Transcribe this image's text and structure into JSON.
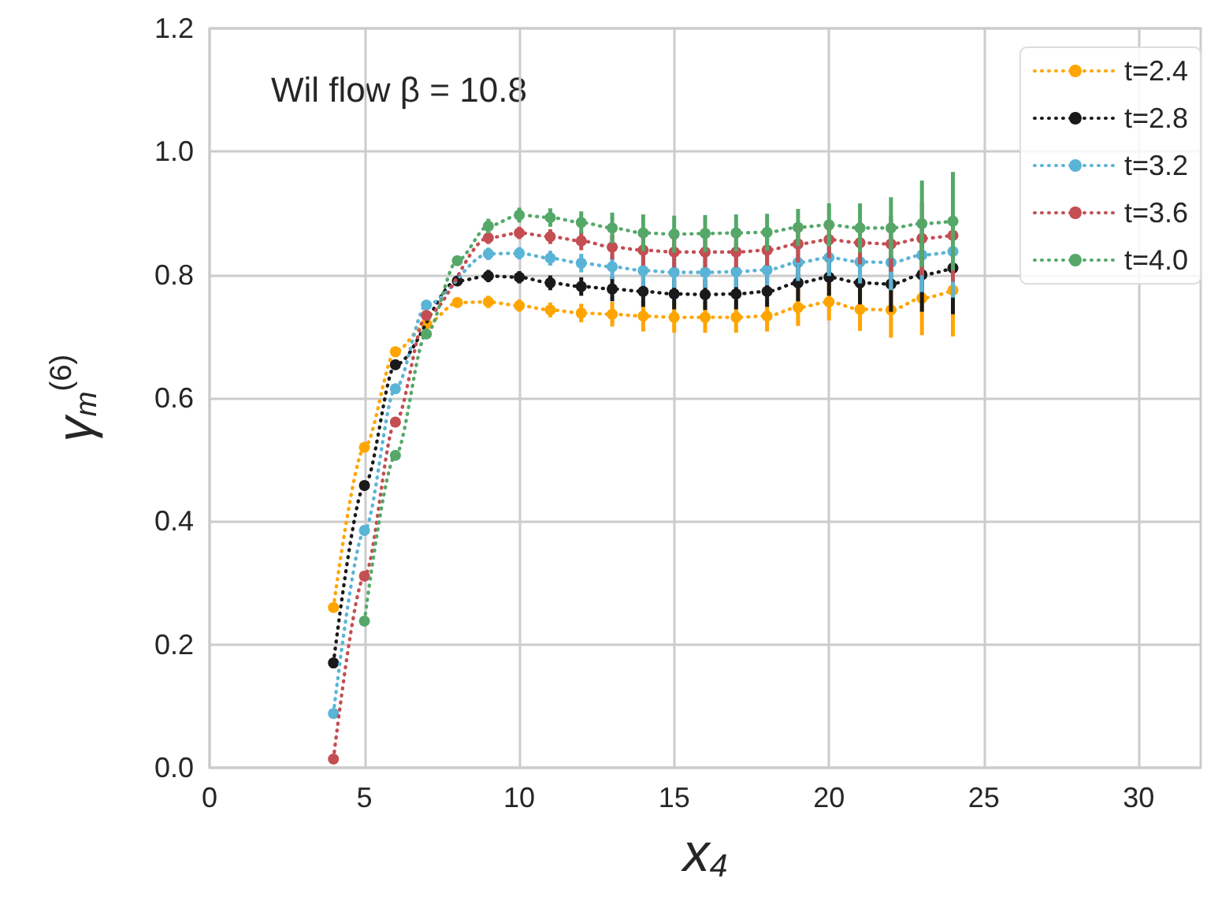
{
  "chart_data": {
    "type": "line",
    "annotations": [
      "Wil flow β = 10.8"
    ],
    "xlabel": "x$_{4}$",
    "ylabel": "γ$_{m}$$^{(6)}$",
    "xlim": [
      0,
      32
    ],
    "xticks": [
      0,
      5,
      10,
      15,
      20,
      25,
      30
    ],
    "ylim": [
      0,
      1.2
    ],
    "yticks": [
      {
        "value": 0,
        "label": "0.0"
      },
      0.2,
      0.4,
      0.6,
      0.8,
      {
        "value": 1,
        "label": "1.0"
      },
      1.2
    ],
    "grid": true,
    "legend": "top right",
    "marker": "circle",
    "line_style": "dotted",
    "series": [
      {
        "name": "t=2.4",
        "color": "#ffa500",
        "x": [
          4,
          5,
          6,
          7,
          8,
          9,
          10,
          11,
          12,
          13,
          14,
          15,
          16,
          17,
          18,
          19,
          20,
          21,
          22,
          23,
          24
        ],
        "values": [
          0.26,
          0.52,
          0.675,
          0.72,
          0.755,
          0.756,
          0.75,
          0.743,
          0.738,
          0.736,
          0.733,
          0.731,
          0.731,
          0.731,
          0.733,
          0.747,
          0.756,
          0.744,
          0.743,
          0.762,
          0.775
        ],
        "errors": [
          null,
          null,
          null,
          null,
          null,
          0.01,
          0.01,
          0.012,
          0.015,
          0.02,
          0.025,
          0.025,
          0.025,
          0.025,
          0.025,
          0.03,
          0.03,
          0.035,
          0.045,
          0.06,
          0.075
        ]
      },
      {
        "name": "t=2.8",
        "color": "#1a1a1a",
        "x": [
          4,
          5,
          6,
          7,
          8,
          9,
          10,
          11,
          12,
          13,
          14,
          15,
          16,
          17,
          18,
          19,
          20,
          21,
          22,
          23,
          24
        ],
        "values": [
          0.17,
          0.458,
          0.654,
          null,
          0.79,
          0.798,
          0.796,
          0.787,
          0.781,
          0.777,
          0.773,
          0.769,
          0.768,
          0.769,
          0.773,
          0.787,
          0.796,
          0.787,
          0.785,
          0.8,
          0.811
        ],
        "errors": [
          null,
          null,
          null,
          null,
          null,
          0.01,
          0.01,
          0.012,
          0.015,
          0.02,
          0.025,
          0.025,
          0.025,
          0.025,
          0.025,
          0.03,
          0.03,
          0.035,
          0.045,
          0.06,
          0.075
        ]
      },
      {
        "name": "t=3.2",
        "color": "#5ab4d6",
        "x": [
          4,
          5,
          6,
          7,
          8,
          9,
          10,
          11,
          12,
          13,
          14,
          15,
          16,
          17,
          18,
          19,
          20,
          21,
          22,
          23,
          24
        ],
        "values": [
          0.088,
          0.385,
          0.615,
          0.751,
          null,
          0.834,
          0.835,
          0.827,
          0.819,
          0.813,
          0.807,
          0.804,
          0.804,
          0.805,
          0.808,
          0.82,
          0.828,
          0.821,
          0.82,
          0.832,
          0.838
        ],
        "errors": [
          null,
          null,
          null,
          null,
          null,
          0.01,
          0.01,
          0.012,
          0.015,
          0.02,
          0.025,
          0.025,
          0.025,
          0.025,
          0.025,
          0.03,
          0.03,
          0.035,
          0.045,
          0.06,
          0.075
        ]
      },
      {
        "name": "t=3.6",
        "color": "#c44e52",
        "x": [
          4,
          5,
          6,
          7,
          8,
          9,
          10,
          11,
          12,
          13,
          14,
          15,
          16,
          17,
          18,
          19,
          20,
          21,
          22,
          23,
          24
        ],
        "values": [
          0.014,
          0.311,
          0.561,
          0.734,
          null,
          0.86,
          0.868,
          0.862,
          0.855,
          0.845,
          0.84,
          0.837,
          0.837,
          0.837,
          0.84,
          0.85,
          0.857,
          0.852,
          0.85,
          0.859,
          0.864
        ],
        "errors": [
          null,
          null,
          null,
          null,
          null,
          0.01,
          0.01,
          0.012,
          0.015,
          0.02,
          0.025,
          0.025,
          0.025,
          0.025,
          0.025,
          0.03,
          0.03,
          0.035,
          0.045,
          0.06,
          0.075
        ]
      },
      {
        "name": "t=4.0",
        "color": "#55a868",
        "x": [
          5,
          6,
          7,
          8,
          9,
          10,
          11,
          12,
          13,
          14,
          15,
          16,
          17,
          18,
          19,
          20,
          21,
          22,
          23,
          24
        ],
        "values": [
          0.238,
          0.507,
          0.704,
          0.823,
          0.879,
          0.897,
          0.893,
          0.885,
          0.876,
          0.868,
          0.866,
          0.867,
          0.868,
          0.869,
          0.877,
          0.881,
          0.876,
          0.876,
          0.883,
          0.887
        ],
        "errors": [
          null,
          null,
          null,
          null,
          0.012,
          0.012,
          0.015,
          0.018,
          0.025,
          0.03,
          0.03,
          0.03,
          0.03,
          0.03,
          0.03,
          0.035,
          0.04,
          0.05,
          0.07,
          0.08
        ]
      }
    ]
  }
}
